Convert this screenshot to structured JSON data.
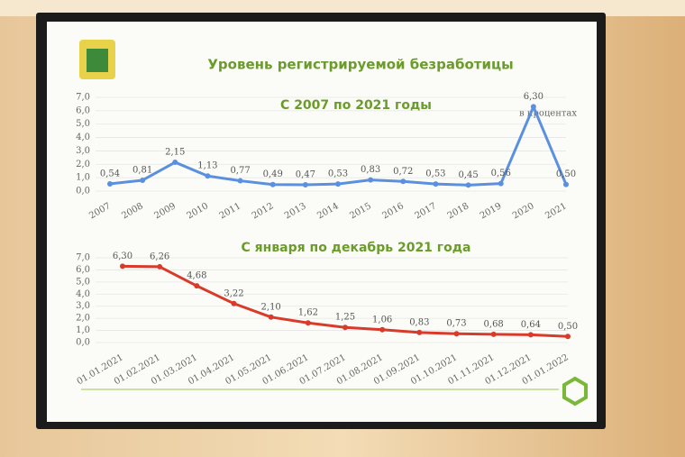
{
  "chart_data": [
    {
      "type": "line",
      "title": "Уровень регистрируемой безработицы",
      "subtitle": "С 2007 по 2021 годы",
      "y_label": "в процентах",
      "categories": [
        "2007",
        "2008",
        "2009",
        "2010",
        "2011",
        "2012",
        "2013",
        "2014",
        "2015",
        "2016",
        "2017",
        "2018",
        "2019",
        "2020",
        "2021"
      ],
      "values": [
        0.54,
        0.81,
        2.15,
        1.13,
        0.77,
        0.49,
        0.47,
        0.53,
        0.83,
        0.72,
        0.53,
        0.45,
        0.56,
        6.3,
        0.5
      ],
      "value_labels": [
        "0,54",
        "0,81",
        "2,15",
        "1,13",
        "0,77",
        "0,49",
        "0,47",
        "0,53",
        "0,83",
        "0,72",
        "0,53",
        "0,45",
        "0,56",
        "6,30",
        "0,50"
      ],
      "color": "#5b8fe0",
      "ylim": [
        0,
        7
      ],
      "yticks": [
        {
          "value": 0,
          "label": "0,0"
        },
        {
          "value": 1,
          "label": "1,0"
        },
        {
          "value": 2,
          "label": "2,0"
        },
        {
          "value": 3,
          "label": "3,0"
        },
        {
          "value": 4,
          "label": "4,0"
        },
        {
          "value": 5,
          "label": "5,0"
        },
        {
          "value": 6,
          "label": "6,0"
        },
        {
          "value": 7,
          "label": "7,0"
        }
      ],
      "grid": true
    },
    {
      "type": "line",
      "subtitle": "С января по декабрь 2021 года",
      "categories": [
        "01.01.2021",
        "01.02.2021",
        "01.03.2021",
        "01.04.2021",
        "01.05.2021",
        "01.06.2021",
        "01.07.2021",
        "01.08.2021",
        "01.09.2021",
        "01.10.2021",
        "01.11.2021",
        "01.12.2021",
        "01.01.2022"
      ],
      "values": [
        6.3,
        6.26,
        4.68,
        3.22,
        2.1,
        1.62,
        1.25,
        1.06,
        0.83,
        0.73,
        0.68,
        0.64,
        0.5
      ],
      "value_labels": [
        "6,30",
        "6,26",
        "4,68",
        "3,22",
        "2,10",
        "1,62",
        "1,25",
        "1,06",
        "0,83",
        "0,73",
        "0,68",
        "0,64",
        "0,50"
      ],
      "color": "#d93a2a",
      "ylim": [
        0,
        7
      ],
      "yticks": [
        {
          "value": 0,
          "label": "0,0"
        },
        {
          "value": 1,
          "label": "1,0"
        },
        {
          "value": 2,
          "label": "2,0"
        },
        {
          "value": 3,
          "label": "3,0"
        },
        {
          "value": 4,
          "label": "4,0"
        },
        {
          "value": 5,
          "label": "5,0"
        },
        {
          "value": 6,
          "label": "6,0"
        },
        {
          "value": 7,
          "label": "7,0"
        }
      ],
      "grid": true
    }
  ]
}
